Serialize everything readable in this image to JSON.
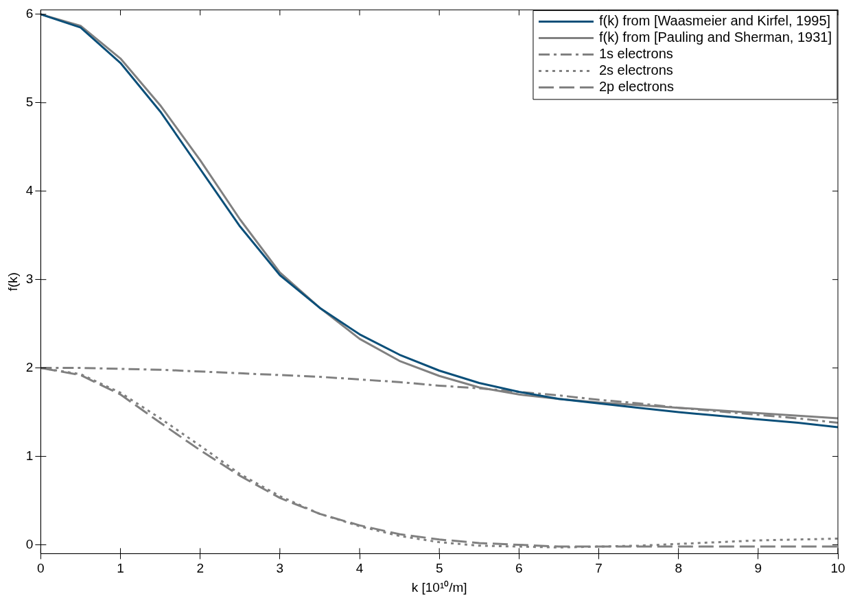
{
  "chart_data": {
    "type": "line",
    "xlabel": "k [10¹⁰/m]",
    "ylabel": "f(k)",
    "xlim": [
      0,
      10
    ],
    "ylim": [
      -0.1,
      6.05
    ],
    "xticks": [
      0,
      1,
      2,
      3,
      4,
      5,
      6,
      7,
      8,
      9,
      10
    ],
    "yticks": [
      0,
      1,
      2,
      3,
      4,
      5,
      6
    ],
    "grid": false,
    "legend": "top right",
    "marker": "none",
    "x": [
      0,
      0.5,
      1,
      1.5,
      2,
      2.5,
      3,
      3.5,
      4,
      4.5,
      5,
      5.5,
      6,
      6.5,
      7,
      7.5,
      8,
      8.5,
      9,
      9.5,
      10
    ],
    "series": [
      {
        "name": "f(k) from [Waasmeier and Kirfel, 1995]",
        "color": "#0b4f79",
        "line_style": "solid",
        "values": [
          6,
          5.85,
          5.45,
          4.9,
          4.25,
          3.6,
          3.05,
          2.68,
          2.38,
          2.15,
          1.97,
          1.83,
          1.73,
          1.65,
          1.6,
          1.55,
          1.5,
          1.46,
          1.42,
          1.38,
          1.33
        ]
      },
      {
        "name": "f(k) from [Pauling and Sherman, 1931]",
        "color": "#808080",
        "line_style": "solid",
        "values": [
          6,
          5.87,
          5.5,
          4.97,
          4.35,
          3.68,
          3.08,
          2.68,
          2.33,
          2.08,
          1.91,
          1.78,
          1.7,
          1.65,
          1.61,
          1.58,
          1.55,
          1.52,
          1.49,
          1.46,
          1.43
        ]
      },
      {
        "name": "1s electrons",
        "color": "#808080",
        "line_style": "dashdot",
        "values": [
          2,
          2,
          1.99,
          1.98,
          1.96,
          1.94,
          1.92,
          1.9,
          1.87,
          1.84,
          1.8,
          1.77,
          1.73,
          1.69,
          1.64,
          1.6,
          1.55,
          1.51,
          1.47,
          1.43,
          1.38
        ]
      },
      {
        "name": "2s electrons",
        "color": "#808080",
        "line_style": "dotted",
        "values": [
          2,
          1.93,
          1.72,
          1.43,
          1.12,
          0.8,
          0.55,
          0.35,
          0.21,
          0.1,
          0.03,
          -0.01,
          -0.02,
          -0.03,
          -0.02,
          -0.01,
          0.01,
          0.03,
          0.05,
          0.06,
          0.07
        ]
      },
      {
        "name": "2p electrons",
        "color": "#808080",
        "line_style": "dashed",
        "values": [
          2,
          1.92,
          1.7,
          1.38,
          1.07,
          0.78,
          0.53,
          0.35,
          0.22,
          0.12,
          0.06,
          0.02,
          0,
          -0.02,
          -0.02,
          -0.02,
          -0.02,
          -0.02,
          -0.02,
          -0.02,
          -0.02
        ]
      }
    ]
  }
}
